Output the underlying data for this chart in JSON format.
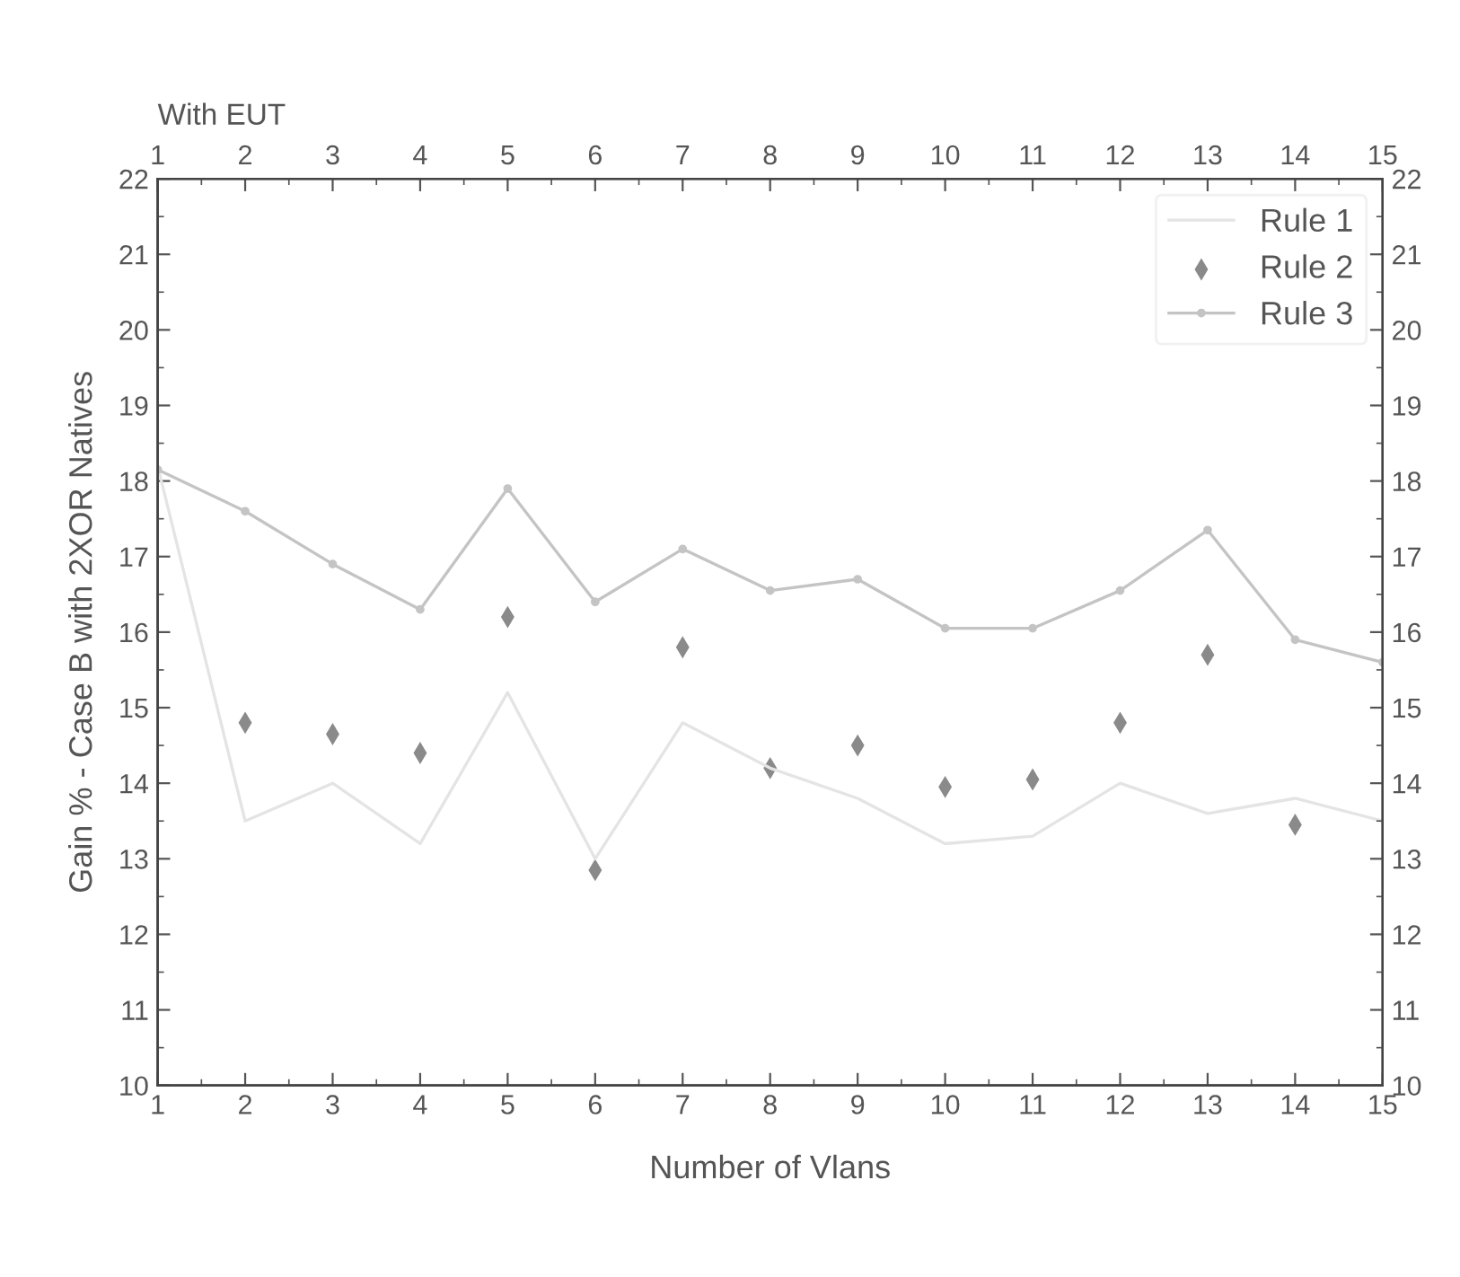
{
  "chart_data": {
    "type": "line",
    "xlabel": "Number of Vlans",
    "x2label": "With EUT",
    "ylabel": "Gain % - Case B with 2XOR Natives",
    "x": [
      1,
      2,
      3,
      4,
      5,
      6,
      7,
      8,
      9,
      10,
      11,
      12,
      13,
      14,
      15
    ],
    "series": [
      {
        "name": "Rule 1",
        "color": "#e4e4e4",
        "marker": "none",
        "values": [
          18.2,
          13.5,
          14.0,
          13.2,
          15.2,
          13.0,
          14.8,
          14.2,
          13.8,
          13.2,
          13.3,
          14.0,
          13.6,
          13.8,
          13.5
        ]
      },
      {
        "name": "Rule 2",
        "type": "scatter",
        "color": "#8a8a8a",
        "marker": "diamond",
        "values": [
          null,
          14.8,
          14.65,
          14.4,
          16.2,
          12.85,
          15.8,
          14.2,
          14.5,
          13.95,
          14.05,
          14.8,
          15.7,
          13.45,
          null
        ]
      },
      {
        "name": "Rule 3",
        "color": "#c4c4c4",
        "marker": "circle",
        "values": [
          18.15,
          17.6,
          16.9,
          16.3,
          17.9,
          16.4,
          17.1,
          16.55,
          16.7,
          16.05,
          16.05,
          16.55,
          17.35,
          15.9,
          15.6
        ]
      }
    ],
    "xlim": [
      1,
      15
    ],
    "xticks": [
      1,
      2,
      3,
      4,
      5,
      6,
      7,
      8,
      9,
      10,
      11,
      12,
      13,
      14,
      15
    ],
    "x2lim": [
      1,
      15
    ],
    "x2ticks": [
      1,
      2,
      3,
      4,
      5,
      6,
      7,
      8,
      9,
      10,
      11,
      12,
      13,
      14,
      15
    ],
    "ylim": [
      10,
      22
    ],
    "yticks": [
      10,
      11,
      12,
      13,
      14,
      15,
      16,
      17,
      18,
      19,
      20,
      21,
      22
    ],
    "y2lim": [
      10,
      22
    ],
    "y2ticks": [
      10,
      11,
      12,
      13,
      14,
      15,
      16,
      17,
      18,
      19,
      20,
      21,
      22
    ],
    "grid": false,
    "legend": "top right"
  }
}
